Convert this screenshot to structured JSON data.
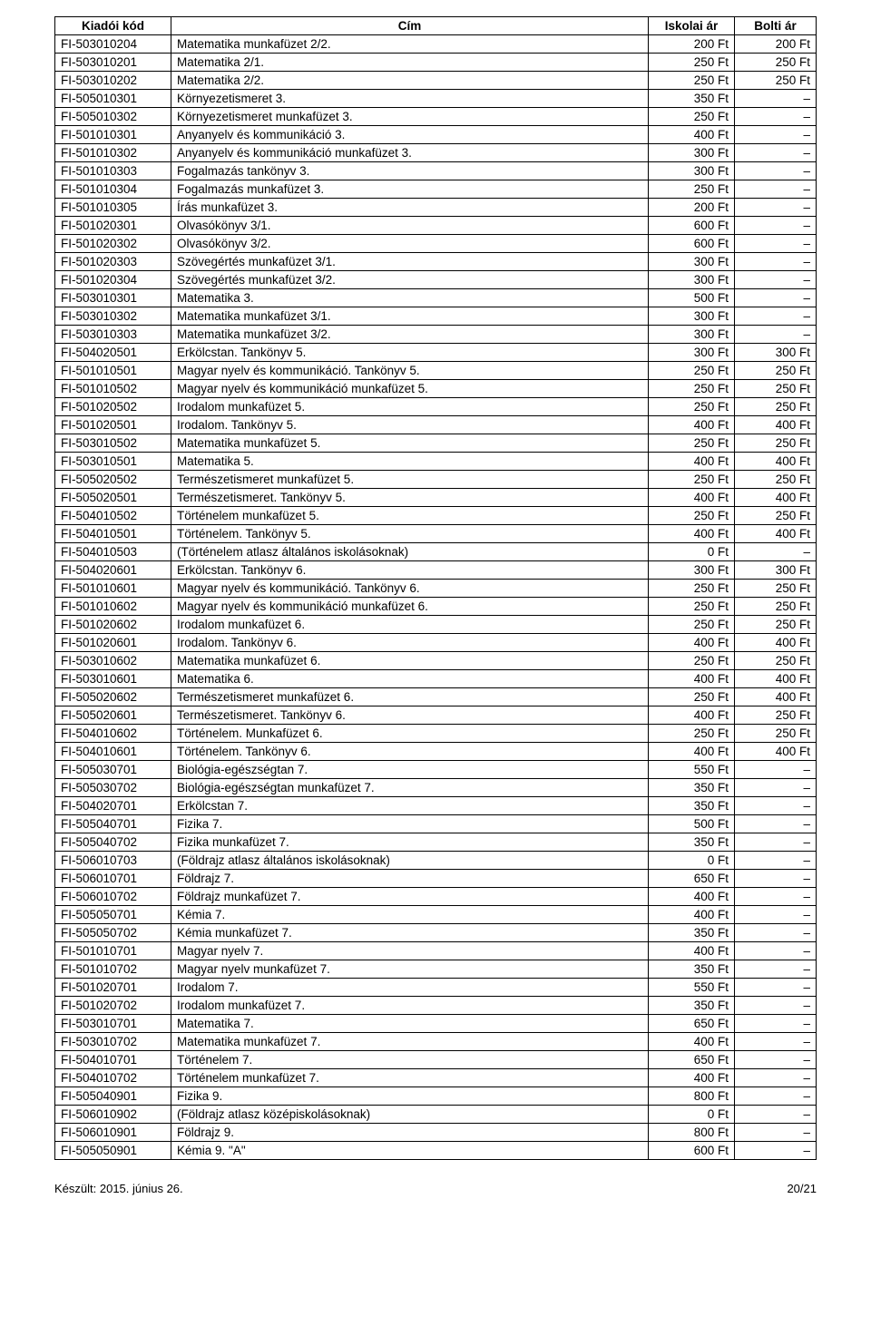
{
  "headers": {
    "code": "Kiadói kód",
    "title": "Cím",
    "school_price": "Iskolai ár",
    "retail_price": "Bolti ár"
  },
  "footer": {
    "left": "Készült: 2015. június 26.",
    "right": "20/21"
  },
  "rows": [
    {
      "code": "FI-503010204",
      "title": "Matematika munkafüzet 2/2.",
      "p1": "200 Ft",
      "p2": "200 Ft"
    },
    {
      "code": "FI-503010201",
      "title": "Matematika 2/1.",
      "p1": "250 Ft",
      "p2": "250 Ft"
    },
    {
      "code": "FI-503010202",
      "title": "Matematika 2/2.",
      "p1": "250 Ft",
      "p2": "250 Ft"
    },
    {
      "code": "FI-505010301",
      "title": "Környezetismeret 3.",
      "p1": "350 Ft",
      "p2": "–"
    },
    {
      "code": "FI-505010302",
      "title": "Környezetismeret munkafüzet 3.",
      "p1": "250 Ft",
      "p2": "–"
    },
    {
      "code": "FI-501010301",
      "title": "Anyanyelv és kommunikáció 3.",
      "p1": "400 Ft",
      "p2": "–"
    },
    {
      "code": "FI-501010302",
      "title": "Anyanyelv és kommunikáció munkafüzet 3.",
      "p1": "300 Ft",
      "p2": "–"
    },
    {
      "code": "FI-501010303",
      "title": "Fogalmazás tankönyv 3.",
      "p1": "300 Ft",
      "p2": "–"
    },
    {
      "code": "FI-501010304",
      "title": "Fogalmazás munkafüzet 3.",
      "p1": "250 Ft",
      "p2": "–"
    },
    {
      "code": "FI-501010305",
      "title": "Írás munkafüzet 3.",
      "p1": "200 Ft",
      "p2": "–"
    },
    {
      "code": "FI-501020301",
      "title": "Olvasókönyv 3/1.",
      "p1": "600 Ft",
      "p2": "–"
    },
    {
      "code": "FI-501020302",
      "title": "Olvasókönyv 3/2.",
      "p1": "600 Ft",
      "p2": "–"
    },
    {
      "code": "FI-501020303",
      "title": "Szövegértés munkafüzet 3/1.",
      "p1": "300 Ft",
      "p2": "–"
    },
    {
      "code": "FI-501020304",
      "title": "Szövegértés munkafüzet 3/2.",
      "p1": "300 Ft",
      "p2": "–"
    },
    {
      "code": "FI-503010301",
      "title": "Matematika 3.",
      "p1": "500 Ft",
      "p2": "–"
    },
    {
      "code": "FI-503010302",
      "title": "Matematika munkafüzet 3/1.",
      "p1": "300 Ft",
      "p2": "–"
    },
    {
      "code": "FI-503010303",
      "title": "Matematika munkafüzet 3/2.",
      "p1": "300 Ft",
      "p2": "–"
    },
    {
      "code": "FI-504020501",
      "title": "Erkölcstan. Tankönyv 5.",
      "p1": "300 Ft",
      "p2": "300 Ft"
    },
    {
      "code": "FI-501010501",
      "title": "Magyar nyelv és kommunikáció. Tankönyv 5.",
      "p1": "250 Ft",
      "p2": "250 Ft"
    },
    {
      "code": "FI-501010502",
      "title": "Magyar nyelv és kommunikáció munkafüzet 5.",
      "p1": "250 Ft",
      "p2": "250 Ft"
    },
    {
      "code": "FI-501020502",
      "title": "Irodalom munkafüzet 5.",
      "p1": "250 Ft",
      "p2": "250 Ft"
    },
    {
      "code": "FI-501020501",
      "title": "Irodalom. Tankönyv 5.",
      "p1": "400 Ft",
      "p2": "400 Ft"
    },
    {
      "code": "FI-503010502",
      "title": "Matematika munkafüzet  5.",
      "p1": "250 Ft",
      "p2": "250 Ft"
    },
    {
      "code": "FI-503010501",
      "title": "Matematika 5.",
      "p1": "400 Ft",
      "p2": "400 Ft"
    },
    {
      "code": "FI-505020502",
      "title": "Természetismeret munkafüzet 5.",
      "p1": "250 Ft",
      "p2": "250 Ft"
    },
    {
      "code": "FI-505020501",
      "title": "Természetismeret. Tankönyv 5.",
      "p1": "400 Ft",
      "p2": "400 Ft"
    },
    {
      "code": "FI-504010502",
      "title": "Történelem munkafüzet 5.",
      "p1": "250 Ft",
      "p2": "250 Ft"
    },
    {
      "code": "FI-504010501",
      "title": "Történelem. Tankönyv 5.",
      "p1": "400 Ft",
      "p2": "400 Ft"
    },
    {
      "code": "FI-504010503",
      "title": "(Történelem atlasz általános iskolásoknak)",
      "p1": "0 Ft",
      "p2": "–"
    },
    {
      "code": "FI-504020601",
      "title": "Erkölcstan. Tankönyv 6.",
      "p1": "300 Ft",
      "p2": "300 Ft"
    },
    {
      "code": "FI-501010601",
      "title": "Magyar nyelv és kommunikáció. Tankönyv 6.",
      "p1": "250 Ft",
      "p2": "250 Ft"
    },
    {
      "code": "FI-501010602",
      "title": "Magyar nyelv és kommunikáció munkafüzet 6.",
      "p1": "250 Ft",
      "p2": "250 Ft"
    },
    {
      "code": "FI-501020602",
      "title": "Irodalom munkafüzet 6.",
      "p1": "250 Ft",
      "p2": "250 Ft"
    },
    {
      "code": "FI-501020601",
      "title": "Irodalom. Tankönyv 6.",
      "p1": "400 Ft",
      "p2": "400 Ft"
    },
    {
      "code": "FI-503010602",
      "title": "Matematika munkafüzet  6.",
      "p1": "250 Ft",
      "p2": "250 Ft"
    },
    {
      "code": "FI-503010601",
      "title": "Matematika 6.",
      "p1": "400 Ft",
      "p2": "400 Ft"
    },
    {
      "code": "FI-505020602",
      "title": "Természetismeret munkafüzet 6.",
      "p1": "250 Ft",
      "p2": "400 Ft"
    },
    {
      "code": "FI-505020601",
      "title": "Természetismeret. Tankönyv 6.",
      "p1": "400 Ft",
      "p2": "250 Ft"
    },
    {
      "code": "FI-504010602",
      "title": "Történelem. Munkafüzet 6.",
      "p1": "250 Ft",
      "p2": "250 Ft"
    },
    {
      "code": "FI-504010601",
      "title": "Történelem. Tankönyv 6.",
      "p1": "400 Ft",
      "p2": "400 Ft"
    },
    {
      "code": "FI-505030701",
      "title": "Biológia-egészségtan 7.",
      "p1": "550 Ft",
      "p2": "–"
    },
    {
      "code": "FI-505030702",
      "title": "Biológia-egészségtan munkafüzet 7.",
      "p1": "350 Ft",
      "p2": "–"
    },
    {
      "code": "FI-504020701",
      "title": "Erkölcstan 7.",
      "p1": "350 Ft",
      "p2": "–"
    },
    {
      "code": "FI-505040701",
      "title": "Fizika 7.",
      "p1": "500 Ft",
      "p2": "–"
    },
    {
      "code": "FI-505040702",
      "title": "Fizika munkafüzet 7.",
      "p1": "350 Ft",
      "p2": "–"
    },
    {
      "code": "FI-506010703",
      "title": "(Földrajz atlasz általános iskolásoknak)",
      "p1": "0 Ft",
      "p2": "–"
    },
    {
      "code": "FI-506010701",
      "title": "Földrajz 7.",
      "p1": "650 Ft",
      "p2": "–"
    },
    {
      "code": "FI-506010702",
      "title": "Földrajz munkafüzet 7.",
      "p1": "400 Ft",
      "p2": "–"
    },
    {
      "code": "FI-505050701",
      "title": "Kémia 7.",
      "p1": "400 Ft",
      "p2": "–"
    },
    {
      "code": "FI-505050702",
      "title": "Kémia munkafüzet 7.",
      "p1": "350 Ft",
      "p2": "–"
    },
    {
      "code": "FI-501010701",
      "title": "Magyar nyelv  7.",
      "p1": "400 Ft",
      "p2": "–"
    },
    {
      "code": "FI-501010702",
      "title": "Magyar nyelv munkafüzet 7.",
      "p1": "350 Ft",
      "p2": "–"
    },
    {
      "code": "FI-501020701",
      "title": "Irodalom 7.",
      "p1": "550 Ft",
      "p2": "–"
    },
    {
      "code": "FI-501020702",
      "title": "Irodalom munkafüzet 7.",
      "p1": "350 Ft",
      "p2": "–"
    },
    {
      "code": "FI-503010701",
      "title": "Matematika 7.",
      "p1": "650 Ft",
      "p2": "–"
    },
    {
      "code": "FI-503010702",
      "title": "Matematika munkafüzet 7.",
      "p1": "400 Ft",
      "p2": "–"
    },
    {
      "code": "FI-504010701",
      "title": "Történelem 7.",
      "p1": "650 Ft",
      "p2": "–"
    },
    {
      "code": "FI-504010702",
      "title": "Történelem munkafüzet 7.",
      "p1": "400 Ft",
      "p2": "–"
    },
    {
      "code": "FI-505040901",
      "title": "Fizika 9.",
      "p1": "800 Ft",
      "p2": "–"
    },
    {
      "code": "FI-506010902",
      "title": "(Földrajz atlasz középiskolásoknak)",
      "p1": "0 Ft",
      "p2": "–"
    },
    {
      "code": "FI-506010901",
      "title": "Földrajz 9.",
      "p1": "800 Ft",
      "p2": "–"
    },
    {
      "code": "FI-505050901",
      "title": "Kémia 9. \"A\"",
      "p1": "600 Ft",
      "p2": "–"
    }
  ]
}
